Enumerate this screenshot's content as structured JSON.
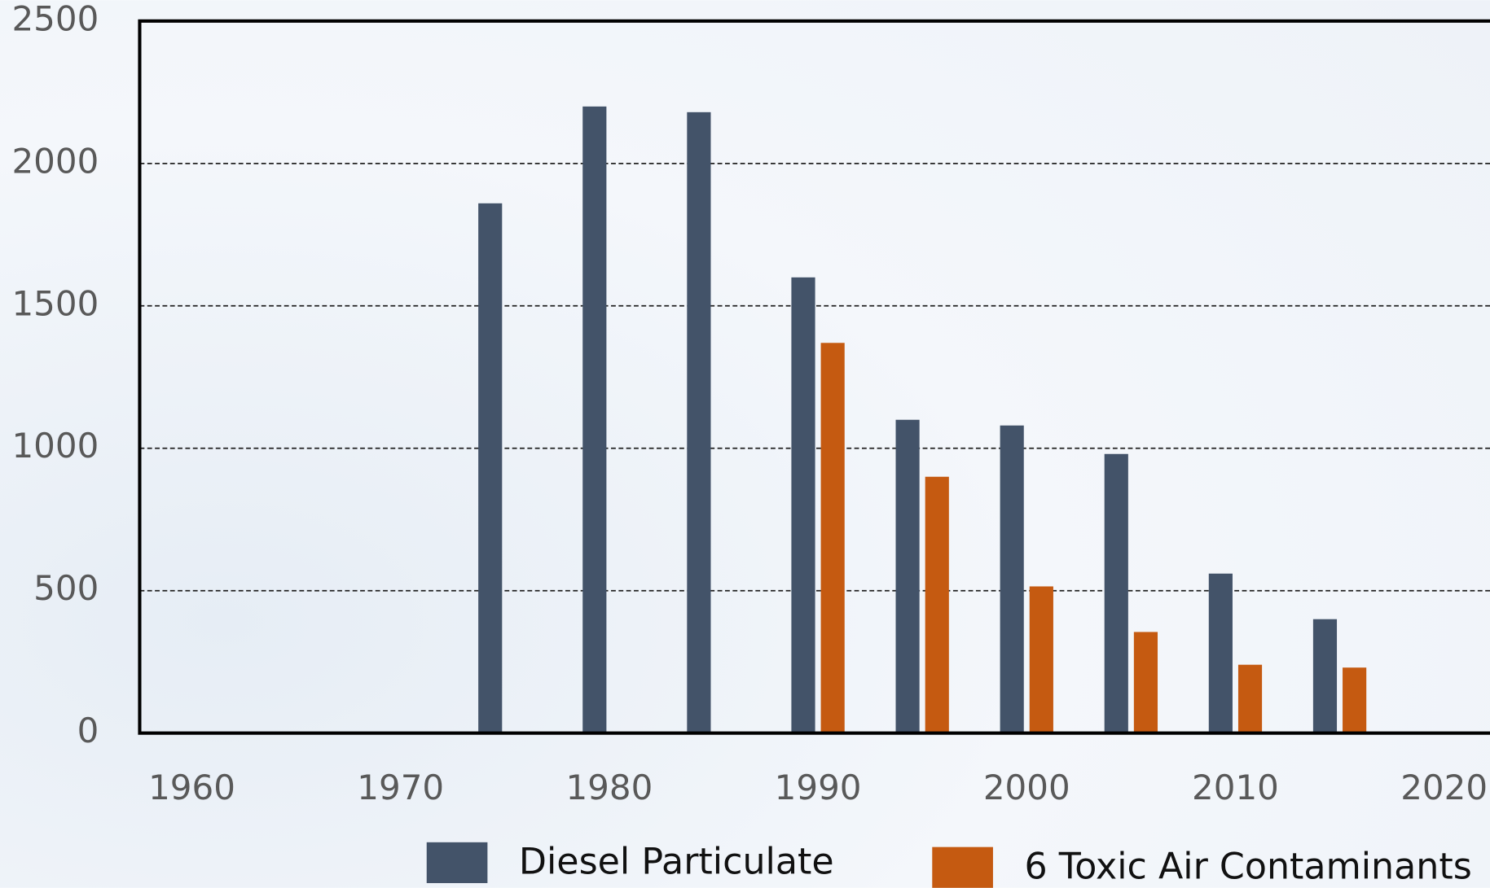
{
  "chart_data": {
    "type": "bar",
    "x": [
      1975,
      1980,
      1985,
      1990,
      1995,
      2000,
      2005,
      2010,
      2015
    ],
    "series": [
      {
        "name": "Diesel Particulate",
        "color": "#435369",
        "values": [
          1860,
          2200,
          2180,
          1600,
          1100,
          1080,
          980,
          560,
          400
        ]
      },
      {
        "name": "6 Toxic Air Contaminants",
        "color": "#c55a11",
        "values": [
          null,
          null,
          null,
          1370,
          900,
          515,
          355,
          240,
          230
        ]
      }
    ],
    "xlim": [
      1957.5,
      2022.2
    ],
    "xticks": [
      1960,
      1970,
      1980,
      1990,
      2000,
      2010,
      2020
    ],
    "ylim": [
      0,
      2500
    ],
    "yticks": [
      0,
      500,
      1000,
      1500,
      2000,
      2500
    ],
    "grid": true
  }
}
